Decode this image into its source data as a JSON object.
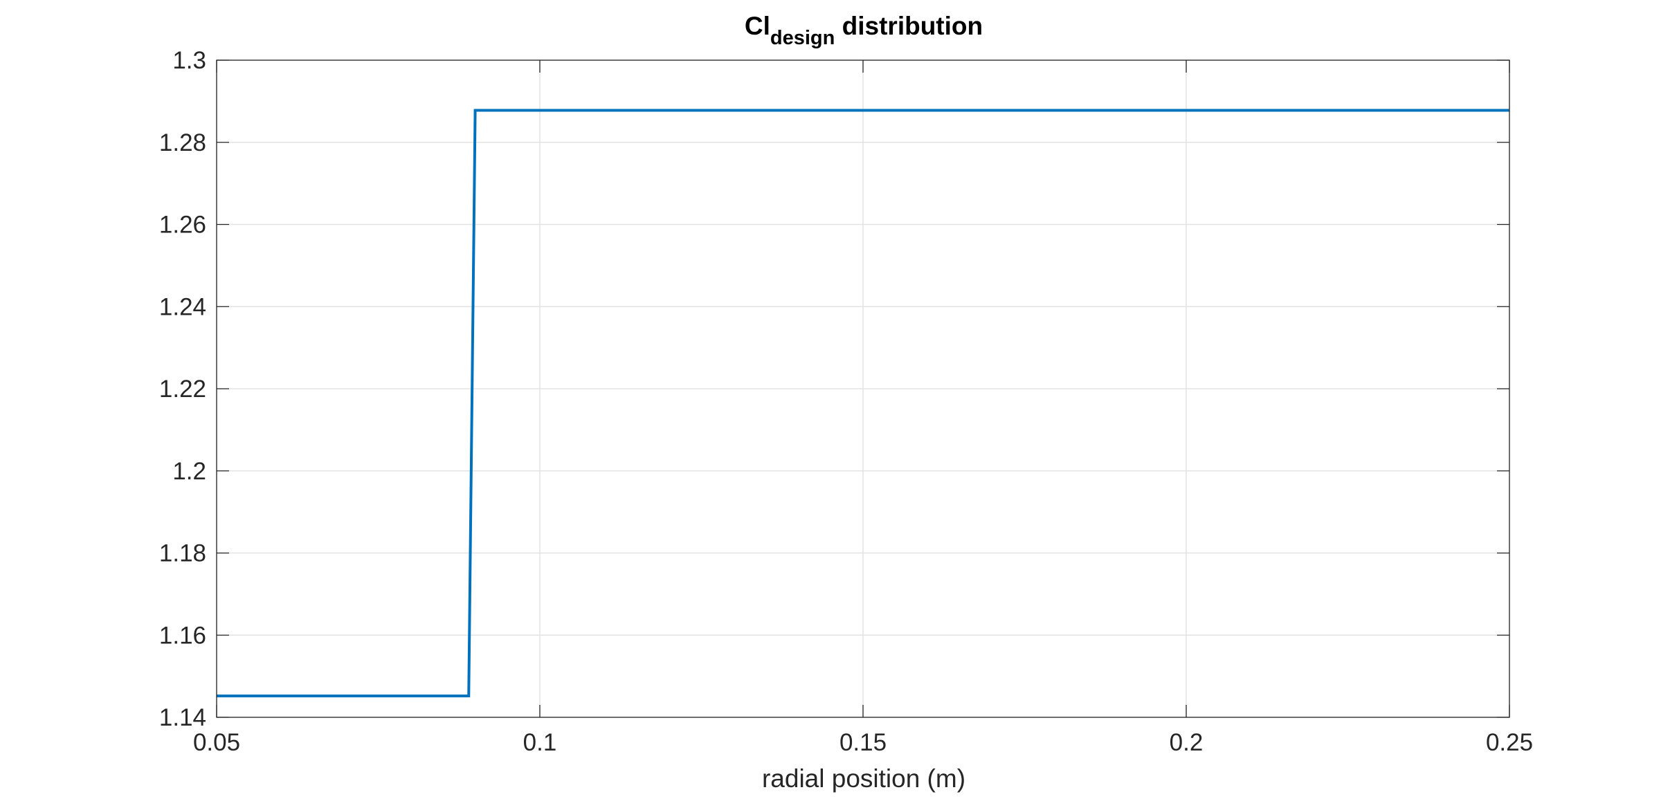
{
  "chart_data": {
    "type": "line",
    "title_main": "Cl",
    "title_sub": "design",
    "title_rest": " distribution",
    "xlabel": "radial position (m)",
    "ylabel": "",
    "xlim": [
      0.05,
      0.25
    ],
    "ylim": [
      1.14,
      1.3
    ],
    "xticks": [
      0.05,
      0.1,
      0.15,
      0.2,
      0.25
    ],
    "xtick_labels": [
      "0.05",
      "0.1",
      "0.15",
      "0.2",
      "0.25"
    ],
    "yticks": [
      1.14,
      1.16,
      1.18,
      1.2,
      1.22,
      1.24,
      1.26,
      1.28,
      1.3
    ],
    "ytick_labels": [
      "1.14",
      "1.16",
      "1.18",
      "1.2",
      "1.22",
      "1.24",
      "1.26",
      "1.28",
      "1.3"
    ],
    "grid": true,
    "series": [
      {
        "color": "#0072BD",
        "x": [
          0.05,
          0.089,
          0.09,
          0.25
        ],
        "y": [
          1.1452,
          1.1452,
          1.2878,
          1.2878
        ]
      }
    ]
  }
}
